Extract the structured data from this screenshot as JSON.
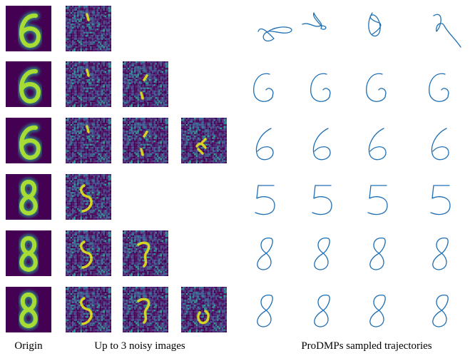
{
  "captions": {
    "origin": "Origin",
    "noisy": "Up to 3 noisy images",
    "trajectories": "ProDMPs sampled trajectories"
  }
}
